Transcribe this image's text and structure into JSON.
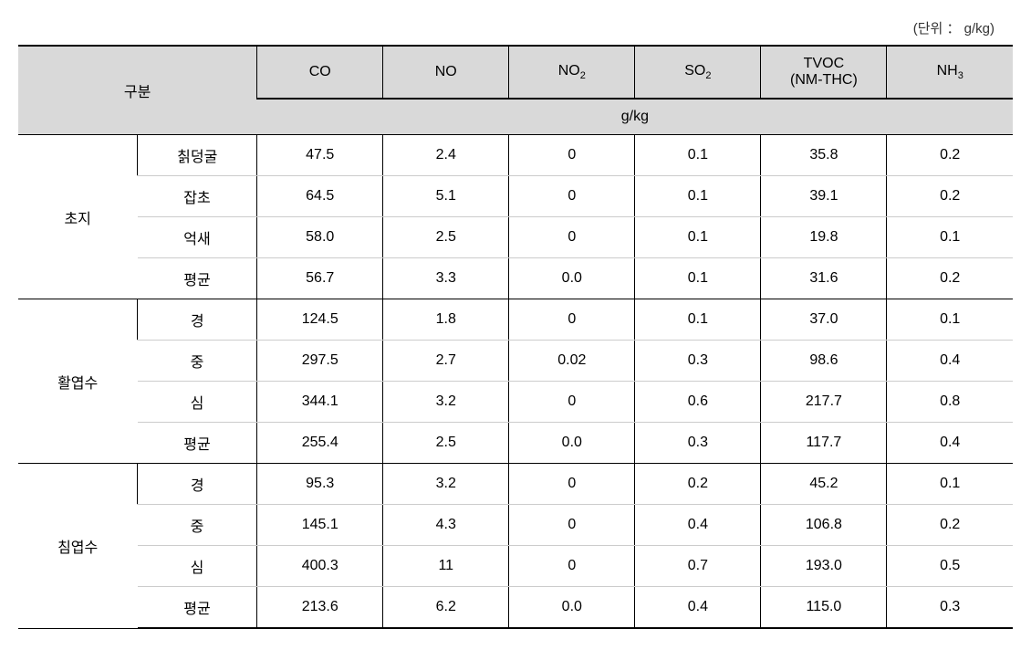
{
  "unit_label": "(단위 ： g/kg)",
  "headers": {
    "category": "구분",
    "columns": [
      "CO",
      "NO",
      "NO₂",
      "SO₂",
      "TVOC\n(NM-THC)",
      "NH₃"
    ],
    "unit_row": "g/kg"
  },
  "groups": [
    {
      "name": "초지",
      "rows": [
        {
          "label": "칡덩굴",
          "values": [
            "47.5",
            "2.4",
            "0",
            "0.1",
            "35.8",
            "0.2"
          ]
        },
        {
          "label": "잡초",
          "values": [
            "64.5",
            "5.1",
            "0",
            "0.1",
            "39.1",
            "0.2"
          ]
        },
        {
          "label": "억새",
          "values": [
            "58.0",
            "2.5",
            "0",
            "0.1",
            "19.8",
            "0.1"
          ]
        },
        {
          "label": "평균",
          "values": [
            "56.7",
            "3.3",
            "0.0",
            "0.1",
            "31.6",
            "0.2"
          ]
        }
      ]
    },
    {
      "name": "활엽수",
      "rows": [
        {
          "label": "경",
          "values": [
            "124.5",
            "1.8",
            "0",
            "0.1",
            "37.0",
            "0.1"
          ]
        },
        {
          "label": "중",
          "values": [
            "297.5",
            "2.7",
            "0.02",
            "0.3",
            "98.6",
            "0.4"
          ]
        },
        {
          "label": "심",
          "values": [
            "344.1",
            "3.2",
            "0",
            "0.6",
            "217.7",
            "0.8"
          ]
        },
        {
          "label": "평균",
          "values": [
            "255.4",
            "2.5",
            "0.0",
            "0.3",
            "117.7",
            "0.4"
          ]
        }
      ]
    },
    {
      "name": "침엽수",
      "rows": [
        {
          "label": "경",
          "values": [
            "95.3",
            "3.2",
            "0",
            "0.2",
            "45.2",
            "0.1"
          ]
        },
        {
          "label": "중",
          "values": [
            "145.1",
            "4.3",
            "0",
            "0.4",
            "106.8",
            "0.2"
          ]
        },
        {
          "label": "심",
          "values": [
            "400.3",
            "11",
            "0",
            "0.7",
            "193.0",
            "0.5"
          ]
        },
        {
          "label": "평균",
          "values": [
            "213.6",
            "6.2",
            "0.0",
            "0.4",
            "115.0",
            "0.3"
          ]
        }
      ]
    }
  ],
  "styling": {
    "header_bg": "#d9d9d9",
    "border_color": "#000000",
    "row_border_color": "#cccccc",
    "font_size": 16,
    "text_color": "#333333"
  }
}
